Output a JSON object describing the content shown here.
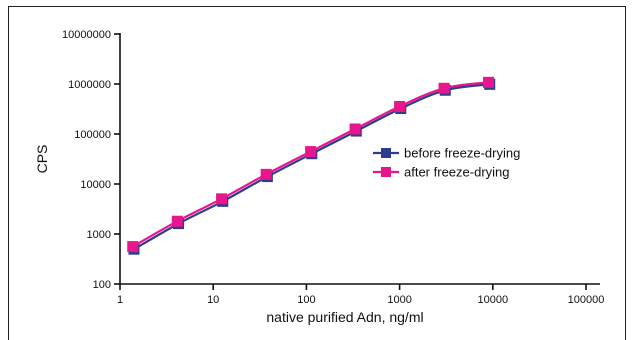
{
  "chart_data": {
    "type": "line",
    "title": "",
    "xlabel": "native purified Adn, ng/ml",
    "ylabel": "CPS",
    "xscale": "log",
    "yscale": "log",
    "xlim": [
      1,
      100000
    ],
    "ylim": [
      100,
      10000000
    ],
    "x_ticks": [
      1,
      10,
      100,
      1000,
      10000,
      100000
    ],
    "x_tick_labels": [
      "1",
      "10",
      "100",
      "1000",
      "10000",
      "100000"
    ],
    "y_ticks": [
      100,
      1000,
      10000,
      100000,
      1000000,
      10000000
    ],
    "y_tick_labels": [
      "100",
      "1000",
      "10000",
      "100000",
      "1000000",
      "10000000"
    ],
    "grid": false,
    "legend_position": "right-center",
    "series": [
      {
        "name": "before freeze-drying",
        "color": "#2e3c8f",
        "marker": "square",
        "x": [
          1.37,
          4.12,
          12.3,
          37.0,
          111,
          333,
          1000,
          3000,
          9000
        ],
        "y": [
          530,
          1720,
          4800,
          15000,
          43000,
          122000,
          345000,
          800000,
          1050000
        ]
      },
      {
        "name": "after freeze-drying",
        "color": "#e8168c",
        "marker": "square",
        "x": [
          1.37,
          4.12,
          12.3,
          37.0,
          111,
          333,
          1000,
          3000,
          9000
        ],
        "y": [
          560,
          1800,
          5050,
          15600,
          44500,
          126000,
          355000,
          820000,
          1080000
        ]
      }
    ]
  }
}
